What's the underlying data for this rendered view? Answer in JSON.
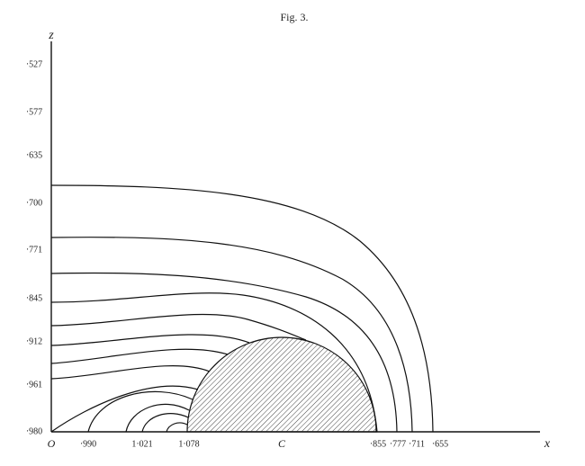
{
  "title": "Fig. 3.",
  "z_axis": {
    "label": "z",
    "ticks": [
      "·527",
      "·577",
      "·635",
      "·700",
      "·771",
      "·845",
      "·912",
      "·961",
      "·980"
    ]
  },
  "x_axis": {
    "label": "x",
    "origin": "O",
    "center": "C",
    "ticks": [
      "·990",
      "1·021",
      "1·078",
      "·855",
      "·777",
      "·711",
      "·655"
    ]
  }
}
